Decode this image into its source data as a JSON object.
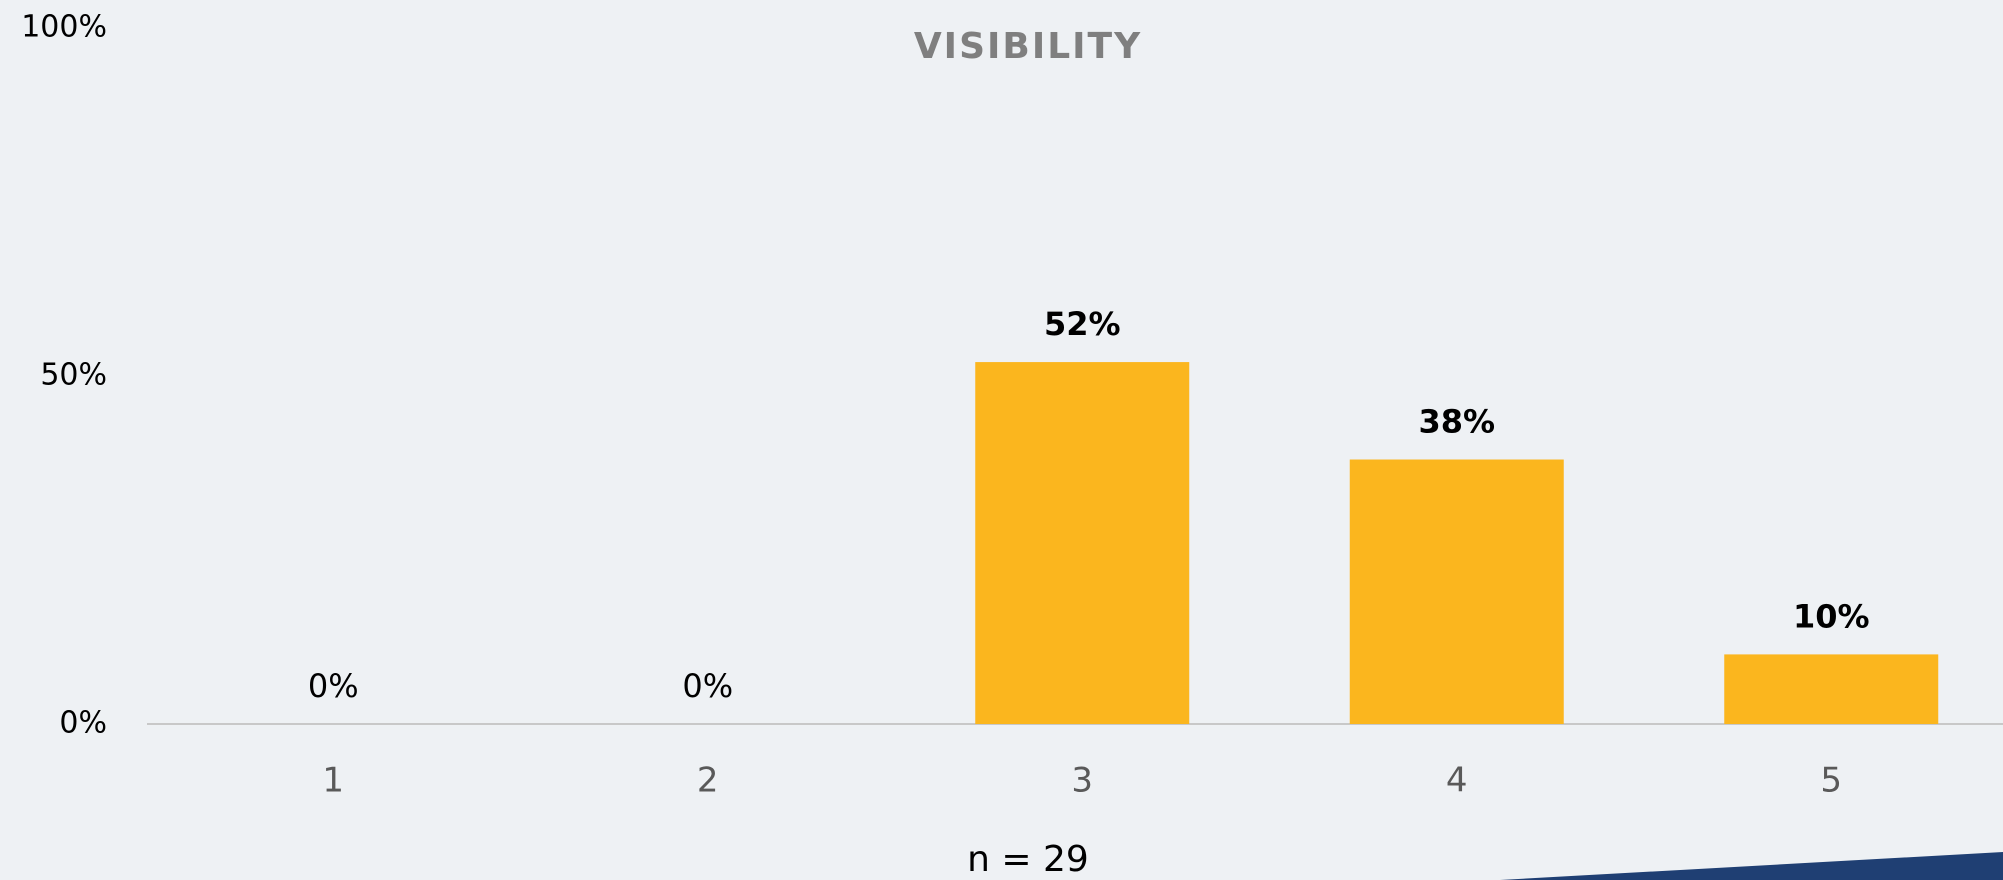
{
  "chart_data": {
    "type": "bar",
    "title": "VISIBILITY",
    "x_label": "n = 29",
    "categories": [
      "1",
      "2",
      "3",
      "4",
      "5"
    ],
    "values": [
      0,
      0,
      52,
      38,
      10
    ],
    "value_labels": [
      "0%",
      "0%",
      "52%",
      "38%",
      "10%"
    ],
    "color": "#fbb61e",
    "ylim": [
      0,
      100
    ],
    "yticks": [
      {
        "value": 0,
        "label": "0%"
      },
      {
        "value": 50,
        "label": "50%"
      },
      {
        "value": 100,
        "label": "100%"
      }
    ]
  }
}
